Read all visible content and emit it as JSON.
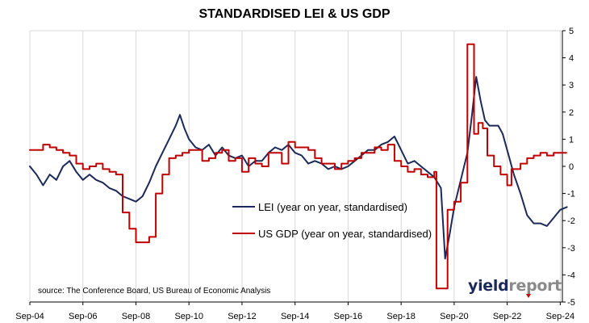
{
  "title": "STANDARDISED LEI & US GDP",
  "source": "source: The Conference Board, US Bureau of Economic Analysis",
  "logo": {
    "part1": "yield",
    "part2": "report"
  },
  "colors": {
    "lei": "#1c2a5a",
    "gdp": "#c00000",
    "axis": "#000000",
    "grid": "#d9d9d9"
  },
  "chart_data": {
    "type": "line",
    "title": "STANDARDISED LEI & US GDP",
    "xlabel": "",
    "ylabel": "",
    "xlim": [
      2004.67,
      2024.75
    ],
    "ylim": [
      -5,
      5
    ],
    "yticks": [
      -5,
      -4,
      -3,
      -2,
      -1,
      0,
      1,
      2,
      3,
      4,
      5
    ],
    "xticks": [
      {
        "pos": 2004.67,
        "label": "Sep-04"
      },
      {
        "pos": 2006.67,
        "label": "Sep-06"
      },
      {
        "pos": 2008.67,
        "label": "Sep-08"
      },
      {
        "pos": 2010.67,
        "label": "Sep-10"
      },
      {
        "pos": 2012.67,
        "label": "Sep-12"
      },
      {
        "pos": 2014.67,
        "label": "Sep-14"
      },
      {
        "pos": 2016.67,
        "label": "Sep-16"
      },
      {
        "pos": 2018.67,
        "label": "Sep-18"
      },
      {
        "pos": 2020.67,
        "label": "Sep-20"
      },
      {
        "pos": 2022.67,
        "label": "Sep-22"
      },
      {
        "pos": 2024.67,
        "label": "Sep-24"
      }
    ],
    "legend_position": "center",
    "grid": "vertical",
    "series": [
      {
        "name": "LEI (year on year, standardised)",
        "color": "#1c2a5a",
        "step": false,
        "points": [
          [
            2004.67,
            0.0
          ],
          [
            2004.92,
            -0.3
          ],
          [
            2005.17,
            -0.7
          ],
          [
            2005.42,
            -0.3
          ],
          [
            2005.67,
            -0.5
          ],
          [
            2005.92,
            0.0
          ],
          [
            2006.17,
            0.2
          ],
          [
            2006.42,
            -0.2
          ],
          [
            2006.67,
            -0.5
          ],
          [
            2006.92,
            -0.3
          ],
          [
            2007.17,
            -0.5
          ],
          [
            2007.42,
            -0.6
          ],
          [
            2007.67,
            -0.8
          ],
          [
            2007.92,
            -0.9
          ],
          [
            2008.17,
            -1.1
          ],
          [
            2008.42,
            -1.2
          ],
          [
            2008.67,
            -1.3
          ],
          [
            2008.92,
            -1.1
          ],
          [
            2009.17,
            -0.6
          ],
          [
            2009.42,
            0.0
          ],
          [
            2009.67,
            0.5
          ],
          [
            2009.92,
            1.0
          ],
          [
            2010.17,
            1.5
          ],
          [
            2010.33,
            1.9
          ],
          [
            2010.5,
            1.4
          ],
          [
            2010.67,
            1.0
          ],
          [
            2010.92,
            0.7
          ],
          [
            2011.17,
            0.6
          ],
          [
            2011.42,
            0.8
          ],
          [
            2011.67,
            0.4
          ],
          [
            2011.92,
            0.7
          ],
          [
            2012.17,
            0.4
          ],
          [
            2012.42,
            0.3
          ],
          [
            2012.67,
            0.4
          ],
          [
            2012.92,
            0.0
          ],
          [
            2013.17,
            0.2
          ],
          [
            2013.42,
            0.2
          ],
          [
            2013.67,
            0.5
          ],
          [
            2013.92,
            0.7
          ],
          [
            2014.17,
            0.6
          ],
          [
            2014.42,
            0.8
          ],
          [
            2014.67,
            0.5
          ],
          [
            2014.92,
            0.4
          ],
          [
            2015.17,
            0.1
          ],
          [
            2015.42,
            0.2
          ],
          [
            2015.67,
            0.1
          ],
          [
            2015.92,
            -0.1
          ],
          [
            2016.17,
            0.0
          ],
          [
            2016.42,
            -0.1
          ],
          [
            2016.67,
            0.0
          ],
          [
            2016.92,
            0.2
          ],
          [
            2017.17,
            0.4
          ],
          [
            2017.42,
            0.6
          ],
          [
            2017.67,
            0.6
          ],
          [
            2017.92,
            0.8
          ],
          [
            2018.17,
            0.9
          ],
          [
            2018.42,
            1.1
          ],
          [
            2018.67,
            0.6
          ],
          [
            2018.92,
            0.1
          ],
          [
            2019.17,
            0.2
          ],
          [
            2019.42,
            0.0
          ],
          [
            2019.67,
            -0.2
          ],
          [
            2019.92,
            -0.4
          ],
          [
            2020.17,
            -0.8
          ],
          [
            2020.33,
            -3.4
          ],
          [
            2020.5,
            -2.5
          ],
          [
            2020.67,
            -1.5
          ],
          [
            2020.92,
            -0.5
          ],
          [
            2021.17,
            0.5
          ],
          [
            2021.33,
            1.8
          ],
          [
            2021.5,
            3.3
          ],
          [
            2021.67,
            2.4
          ],
          [
            2021.83,
            1.7
          ],
          [
            2022.0,
            1.5
          ],
          [
            2022.17,
            1.5
          ],
          [
            2022.33,
            1.5
          ],
          [
            2022.5,
            1.2
          ],
          [
            2022.67,
            0.6
          ],
          [
            2022.92,
            -0.3
          ],
          [
            2023.17,
            -1.0
          ],
          [
            2023.42,
            -1.8
          ],
          [
            2023.67,
            -2.1
          ],
          [
            2023.92,
            -2.1
          ],
          [
            2024.17,
            -2.2
          ],
          [
            2024.42,
            -1.9
          ],
          [
            2024.67,
            -1.6
          ],
          [
            2024.92,
            -1.5
          ]
        ]
      },
      {
        "name": "US GDP (year on year, standardised)",
        "color": "#c00000",
        "step": true,
        "points": [
          [
            2004.67,
            0.6
          ],
          [
            2004.92,
            0.6
          ],
          [
            2005.17,
            0.8
          ],
          [
            2005.42,
            0.7
          ],
          [
            2005.67,
            0.6
          ],
          [
            2005.92,
            0.5
          ],
          [
            2006.17,
            0.4
          ],
          [
            2006.42,
            0.1
          ],
          [
            2006.67,
            -0.1
          ],
          [
            2006.92,
            0.0
          ],
          [
            2007.17,
            0.1
          ],
          [
            2007.42,
            -0.1
          ],
          [
            2007.67,
            -0.2
          ],
          [
            2007.92,
            -0.3
          ],
          [
            2008.17,
            -1.7
          ],
          [
            2008.42,
            -2.3
          ],
          [
            2008.67,
            -2.8
          ],
          [
            2008.92,
            -2.8
          ],
          [
            2009.17,
            -2.6
          ],
          [
            2009.42,
            -1.0
          ],
          [
            2009.67,
            -0.3
          ],
          [
            2009.92,
            0.3
          ],
          [
            2010.17,
            0.4
          ],
          [
            2010.42,
            0.5
          ],
          [
            2010.67,
            0.6
          ],
          [
            2010.92,
            0.6
          ],
          [
            2011.17,
            0.2
          ],
          [
            2011.42,
            0.3
          ],
          [
            2011.67,
            0.5
          ],
          [
            2011.92,
            0.6
          ],
          [
            2012.17,
            0.2
          ],
          [
            2012.42,
            0.3
          ],
          [
            2012.67,
            -0.2
          ],
          [
            2012.92,
            0.3
          ],
          [
            2013.17,
            0.1
          ],
          [
            2013.42,
            0.0
          ],
          [
            2013.67,
            0.5
          ],
          [
            2013.92,
            0.5
          ],
          [
            2014.17,
            0.1
          ],
          [
            2014.42,
            0.9
          ],
          [
            2014.67,
            0.7
          ],
          [
            2014.92,
            0.7
          ],
          [
            2015.17,
            0.6
          ],
          [
            2015.42,
            0.3
          ],
          [
            2015.67,
            0.1
          ],
          [
            2015.92,
            0.1
          ],
          [
            2016.17,
            -0.1
          ],
          [
            2016.42,
            0.1
          ],
          [
            2016.67,
            0.2
          ],
          [
            2016.92,
            0.3
          ],
          [
            2017.17,
            0.5
          ],
          [
            2017.42,
            0.5
          ],
          [
            2017.67,
            0.7
          ],
          [
            2017.92,
            0.6
          ],
          [
            2018.17,
            0.8
          ],
          [
            2018.42,
            0.2
          ],
          [
            2018.67,
            0.0
          ],
          [
            2018.92,
            -0.2
          ],
          [
            2019.17,
            -0.1
          ],
          [
            2019.42,
            -0.3
          ],
          [
            2019.67,
            -0.4
          ],
          [
            2019.92,
            -0.2
          ],
          [
            2020.0,
            -4.5
          ],
          [
            2020.25,
            -4.5
          ],
          [
            2020.42,
            -1.6
          ],
          [
            2020.67,
            -1.3
          ],
          [
            2020.92,
            -0.6
          ],
          [
            2021.17,
            4.5
          ],
          [
            2021.42,
            1.2
          ],
          [
            2021.58,
            1.6
          ],
          [
            2021.75,
            1.4
          ],
          [
            2021.92,
            0.4
          ],
          [
            2022.17,
            0.0
          ],
          [
            2022.42,
            -0.3
          ],
          [
            2022.67,
            -0.7
          ],
          [
            2022.83,
            -0.1
          ],
          [
            2023.17,
            0.1
          ],
          [
            2023.42,
            0.3
          ],
          [
            2023.67,
            0.4
          ],
          [
            2023.92,
            0.5
          ],
          [
            2024.17,
            0.4
          ],
          [
            2024.42,
            0.5
          ],
          [
            2024.67,
            0.5
          ],
          [
            2024.9,
            0.5
          ]
        ]
      }
    ]
  }
}
